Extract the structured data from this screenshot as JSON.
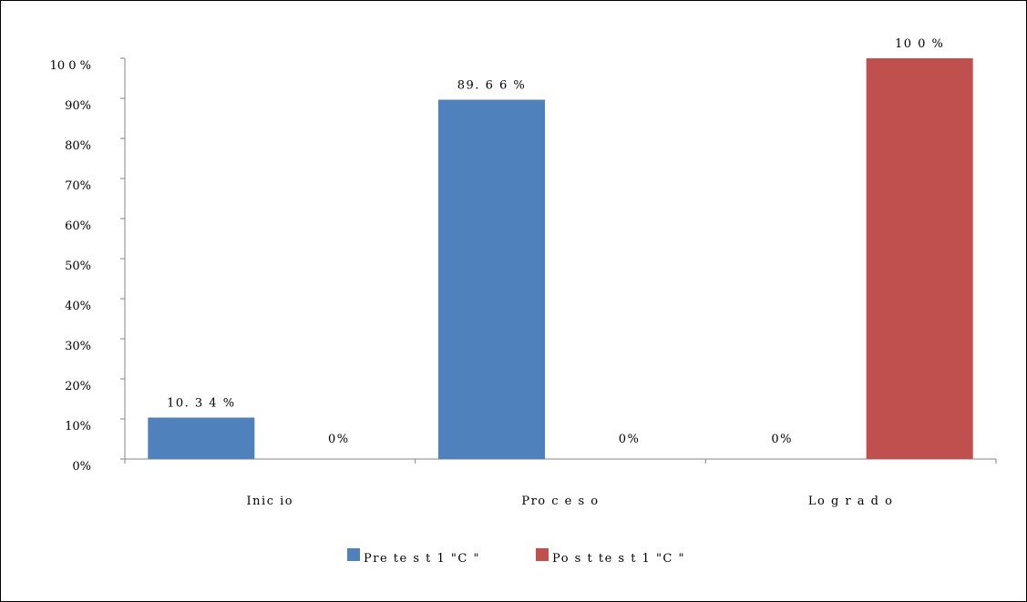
{
  "chart_data": {
    "type": "bar",
    "categories": [
      "Inic io",
      "Pro c e s o",
      "Lo g r a d o"
    ],
    "series": [
      {
        "name": "Pre  te s t  1  \"C \"",
        "color": "#4F81BD",
        "values": [
          10.34,
          89.66,
          0
        ],
        "labels": [
          "10. 3 4 %",
          "89. 6 6 %",
          "0%"
        ]
      },
      {
        "name": "Po s t  te s t  1  \"C \"",
        "color": "#C0504D",
        "values": [
          0,
          0,
          100
        ],
        "labels": [
          "0%",
          "0%",
          "10 0 %"
        ]
      }
    ],
    "ylim": [
      0,
      100
    ],
    "yticks": [
      0,
      10,
      20,
      30,
      40,
      50,
      60,
      70,
      80,
      90,
      100
    ],
    "ytick_labels": [
      "0%",
      "10%",
      "20%",
      "30%",
      "40%",
      "50%",
      "60%",
      "70%",
      "80%",
      "90%",
      "10 0 %"
    ],
    "legend_position": "bottom",
    "grid": false
  }
}
